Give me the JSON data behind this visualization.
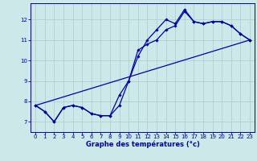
{
  "xlabel": "Graphe des températures (°c)",
  "bg_color": "#cce8e8",
  "grid_color": "#aacccc",
  "line_color": "#0000aa",
  "xlim": [
    -0.5,
    23.5
  ],
  "ylim": [
    6.5,
    12.8
  ],
  "xticks": [
    0,
    1,
    2,
    3,
    4,
    5,
    6,
    7,
    8,
    9,
    10,
    11,
    12,
    13,
    14,
    15,
    16,
    17,
    18,
    19,
    20,
    21,
    22,
    23
  ],
  "yticks": [
    7,
    8,
    9,
    10,
    11,
    12
  ],
  "series1_x": [
    0,
    1,
    2,
    3,
    4,
    5,
    6,
    7,
    8,
    9,
    10,
    11,
    12,
    13,
    14,
    15,
    16,
    17,
    18,
    19,
    20,
    21,
    22,
    23
  ],
  "series1_y": [
    7.8,
    7.5,
    7.0,
    7.7,
    7.8,
    7.7,
    7.4,
    7.3,
    7.3,
    7.8,
    9.0,
    10.5,
    10.8,
    11.0,
    11.5,
    11.7,
    12.4,
    11.9,
    11.8,
    11.9,
    11.9,
    11.7,
    11.3,
    11.0
  ],
  "series2_x": [
    0,
    1,
    2,
    3,
    4,
    5,
    6,
    7,
    8,
    9,
    10,
    11,
    12,
    13,
    14,
    15,
    16,
    17,
    18,
    19,
    20,
    21,
    22,
    23
  ],
  "series2_y": [
    7.8,
    7.5,
    7.0,
    7.7,
    7.8,
    7.7,
    7.4,
    7.3,
    7.3,
    8.3,
    9.0,
    10.2,
    11.0,
    11.5,
    12.0,
    11.8,
    12.5,
    11.9,
    11.8,
    11.9,
    11.9,
    11.7,
    11.3,
    11.0
  ],
  "series3_x": [
    0,
    23
  ],
  "series3_y": [
    7.8,
    11.0
  ],
  "marker_size": 1.8,
  "line_width": 0.9
}
